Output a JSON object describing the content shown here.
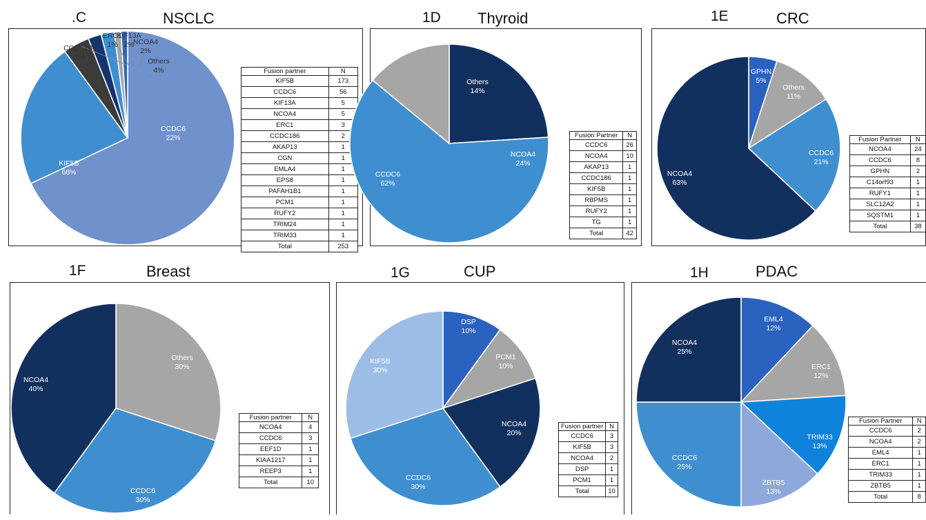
{
  "chart_data": [
    {
      "id": "p1c",
      "type": "pie",
      "panel_label": ".C",
      "title": "NSCLC",
      "slices": [
        {
          "label": "KIF5B",
          "value": 68,
          "pct": "68%",
          "color": "#6f91cc"
        },
        {
          "label": "CCDC6",
          "value": 22,
          "pct": "22%",
          "color": "#3f8fd0"
        },
        {
          "label": "Others",
          "value": 4,
          "pct": "4%",
          "color": "#3c3c3c"
        },
        {
          "label": "NCOA4",
          "value": 2,
          "pct": "2%",
          "color": "#16336e"
        },
        {
          "label": "KIF13A",
          "value": 2,
          "pct": "2%",
          "color": "#3f8fd0"
        },
        {
          "label": "ERC1",
          "value": 1,
          "pct": "1%",
          "color": "#a6a6a6"
        },
        {
          "label": "CCDC186",
          "value": 1,
          "pct": "1%",
          "color": "#2d67b8"
        }
      ],
      "table": {
        "headers": [
          "Fusion partner",
          "N"
        ],
        "rows": [
          [
            "KIF5B",
            "173"
          ],
          [
            "CCDC6",
            "56"
          ],
          [
            "KIF13A",
            "5"
          ],
          [
            "NCOA4",
            "5"
          ],
          [
            "ERC1",
            "3"
          ],
          [
            "CCDC186",
            "2"
          ],
          [
            "AKAP13",
            "1"
          ],
          [
            "CGN",
            "1"
          ],
          [
            "EMLA4",
            "1"
          ],
          [
            "EPS8",
            "1"
          ],
          [
            "PAFAH1B1",
            "1"
          ],
          [
            "PCM1",
            "1"
          ],
          [
            "RUFY2",
            "1"
          ],
          [
            "TRIM24",
            "1"
          ],
          [
            "TRIM33",
            "1"
          ],
          [
            "Total",
            "253"
          ]
        ]
      }
    },
    {
      "id": "p1d",
      "type": "pie",
      "panel_label": "1D",
      "title": "Thyroid",
      "slices": [
        {
          "label": "NCOA4",
          "value": 24,
          "pct": "24%",
          "color": "#12305e"
        },
        {
          "label": "CCDC6",
          "value": 62,
          "pct": "62%",
          "color": "#3f8fd0"
        },
        {
          "label": "Others",
          "value": 14,
          "pct": "14%",
          "color": "#a6a6a6"
        }
      ],
      "table": {
        "headers": [
          "Fusion Partner",
          "N"
        ],
        "rows": [
          [
            "CCDC6",
            "26"
          ],
          [
            "NCOA4",
            "10"
          ],
          [
            "AKAP13",
            "1"
          ],
          [
            "CCDC186",
            "1"
          ],
          [
            "KIF5B",
            "1"
          ],
          [
            "RBPMS",
            "1"
          ],
          [
            "RUFY2",
            "1"
          ],
          [
            "TG",
            "1"
          ],
          [
            "Total",
            "42"
          ]
        ]
      }
    },
    {
      "id": "p1e",
      "type": "pie",
      "panel_label": "1E",
      "title": "CRC",
      "slices": [
        {
          "label": "GPHN",
          "value": 5,
          "pct": "5%",
          "color": "#2a62bf"
        },
        {
          "label": "Others",
          "value": 11,
          "pct": "11%",
          "color": "#a6a6a6"
        },
        {
          "label": "CCDC6",
          "value": 21,
          "pct": "21%",
          "color": "#3f8fd0"
        },
        {
          "label": "NCOA4",
          "value": 63,
          "pct": "63%",
          "color": "#12305e"
        }
      ],
      "table": {
        "headers": [
          "Fusion Partner",
          "N"
        ],
        "rows": [
          [
            "NCOA4",
            "24"
          ],
          [
            "CCDC6",
            "8"
          ],
          [
            "GPHN",
            "2"
          ],
          [
            "C14orf93",
            "1"
          ],
          [
            "RUFY1",
            "1"
          ],
          [
            "SLC12A2",
            "1"
          ],
          [
            "SQSTM1",
            "1"
          ],
          [
            "Total",
            "38"
          ]
        ]
      }
    },
    {
      "id": "p1f",
      "type": "pie",
      "panel_label": "1F",
      "title": "Breast",
      "slices": [
        {
          "label": "Others",
          "value": 30,
          "pct": "30%",
          "color": "#a6a6a6"
        },
        {
          "label": "CCDC6",
          "value": 30,
          "pct": "30%",
          "color": "#3f8fd0"
        },
        {
          "label": "NCOA4",
          "value": 40,
          "pct": "40%",
          "color": "#12305e"
        }
      ],
      "table": {
        "headers": [
          "Fusion partner",
          "N"
        ],
        "rows": [
          [
            "NCOA4",
            "4"
          ],
          [
            "CCDC6",
            "3"
          ],
          [
            "EEF1D",
            "1"
          ],
          [
            "KIAA1217",
            "1"
          ],
          [
            "REEP3",
            "1"
          ],
          [
            "Total",
            "10"
          ]
        ]
      }
    },
    {
      "id": "p1g",
      "type": "pie",
      "panel_label": "1G",
      "title": "CUP",
      "slices": [
        {
          "label": "DSP",
          "value": 10,
          "pct": "10%",
          "color": "#2a62bf"
        },
        {
          "label": "PCM1",
          "value": 10,
          "pct": "10%",
          "color": "#a6a6a6"
        },
        {
          "label": "NCOA4",
          "value": 20,
          "pct": "20%",
          "color": "#12305e"
        },
        {
          "label": "CCDC6",
          "value": 30,
          "pct": "30%",
          "color": "#3f8fd0"
        },
        {
          "label": "KIF5B",
          "value": 30,
          "pct": "30%",
          "color": "#9bbde6"
        }
      ],
      "table": {
        "headers": [
          "Fusion partner",
          "N"
        ],
        "rows": [
          [
            "CCDC6",
            "3"
          ],
          [
            "KIF5B",
            "3"
          ],
          [
            "NCOA4",
            "2"
          ],
          [
            "DSP",
            "1"
          ],
          [
            "PCM1",
            "1"
          ],
          [
            "Total",
            "10"
          ]
        ]
      }
    },
    {
      "id": "p1h",
      "type": "pie",
      "panel_label": "1H",
      "title": "PDAC",
      "slices": [
        {
          "label": "EML4",
          "value": 12,
          "pct": "12%",
          "color": "#2a62bf"
        },
        {
          "label": "ERC1",
          "value": 12,
          "pct": "12%",
          "color": "#a6a6a6"
        },
        {
          "label": "TRIM33",
          "value": 13,
          "pct": "13%",
          "color": "#0f82dc"
        },
        {
          "label": "ZBTB5",
          "value": 13,
          "pct": "13%",
          "color": "#8fa8dc"
        },
        {
          "label": "CCDC6",
          "value": 25,
          "pct": "25%",
          "color": "#3f8fd0"
        },
        {
          "label": "NCOA4",
          "value": 25,
          "pct": "25%",
          "color": "#12305e"
        }
      ],
      "table": {
        "headers": [
          "Fusion Partner",
          "N"
        ],
        "rows": [
          [
            "CCDC6",
            "2"
          ],
          [
            "NCOA4",
            "2"
          ],
          [
            "EML4",
            "1"
          ],
          [
            "ERC1",
            "1"
          ],
          [
            "TRIM33",
            "1"
          ],
          [
            "ZBTB5",
            "1"
          ],
          [
            "Total",
            "8"
          ]
        ]
      }
    }
  ]
}
